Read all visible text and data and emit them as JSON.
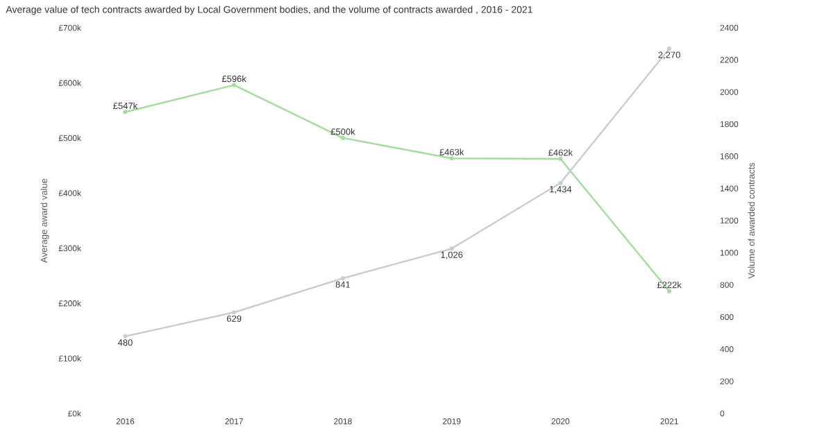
{
  "chart_data": {
    "type": "line",
    "title": "Average value of tech contracts awarded by Local Government bodies, and the volume of contracts awarded , 2016 - 2021",
    "ylabel": "Average award value",
    "y2label": "Volume of awarded contracts",
    "categories": [
      "2016",
      "2017",
      "2018",
      "2019",
      "2020",
      "2021"
    ],
    "series": [
      {
        "color": "#a3dc9c",
        "axis": "y",
        "values": [
          547,
          596,
          500,
          463,
          462,
          222
        ],
        "value_labels": [
          "£547k",
          "£596k",
          "£500k",
          "£463k",
          "£462k",
          "£222k"
        ]
      },
      {
        "color": "#c4ccd4",
        "axis": "y2",
        "values": [
          480,
          629,
          841,
          1026,
          1434,
          2270
        ],
        "value_labels": [
          "480",
          "629",
          "841",
          "1,026",
          "1,434",
          "2,270"
        ]
      }
    ],
    "ylim": [
      0,
      700
    ],
    "yticks": [
      {
        "value": 0,
        "label": "£0k"
      },
      {
        "value": 100,
        "label": "£100k"
      },
      {
        "value": 200,
        "label": "£200k"
      },
      {
        "value": 300,
        "label": "£300k"
      },
      {
        "value": 400,
        "label": "£400k"
      },
      {
        "value": 500,
        "label": "£500k"
      },
      {
        "value": 600,
        "label": "£600k"
      },
      {
        "value": 700,
        "label": "£700k"
      }
    ],
    "y2lim": [
      0,
      2400
    ],
    "y2ticks": [
      0,
      200,
      400,
      600,
      800,
      1000,
      1200,
      1400,
      1600,
      1800,
      2000,
      2200,
      2400
    ],
    "marker": "circle",
    "line_style": "solid",
    "grid": false
  }
}
